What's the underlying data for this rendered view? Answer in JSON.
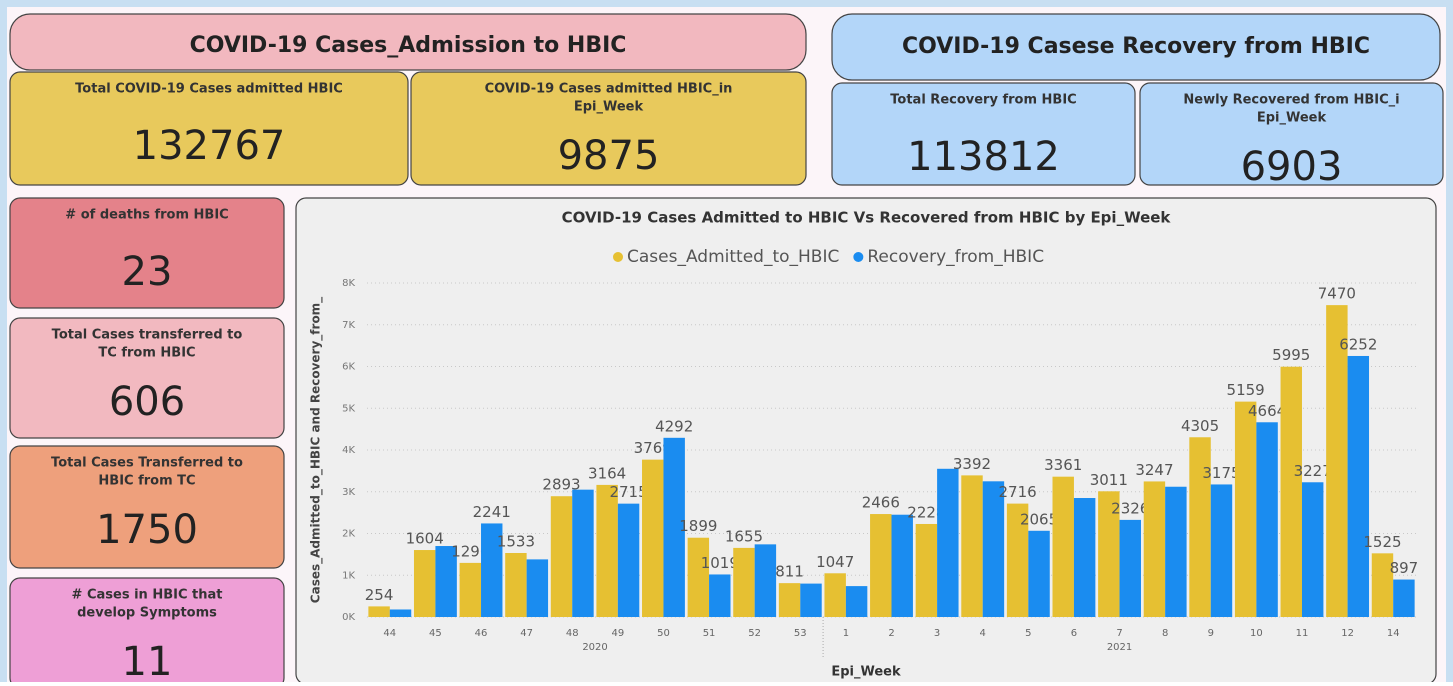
{
  "header_left": "COVID-19 Cases_Admission to HBIC",
  "header_right": "COVID-19 Casese Recovery from HBIC",
  "cards": [
    {
      "title": [
        "Total COVID-19 Cases admitted HBIC"
      ],
      "value": 132767
    },
    {
      "title": [
        "COVID-19 Cases admitted HBIC_in",
        "Epi_Week"
      ],
      "value": 9875
    },
    {
      "title": [
        "Total Recovery from HBIC"
      ],
      "value": 113812
    },
    {
      "title": [
        "Newly Recovered from HBIC_i",
        "Epi_Week"
      ],
      "value": 6903
    },
    {
      "title": [
        "# of deaths from HBIC"
      ],
      "value": 23
    },
    {
      "title": [
        "Total Cases transferred to",
        "TC from HBIC"
      ],
      "value": 606
    },
    {
      "title": [
        "Total Cases Transferred to",
        "HBIC from TC"
      ],
      "value": 1750
    },
    {
      "title": [
        "# Cases in HBIC that",
        "develop Symptoms"
      ],
      "value": 11
    }
  ],
  "chart_data": {
    "type": "bar",
    "title": "COVID-19 Cases Admitted to HBIC Vs Recovered from HBIC by Epi_Week",
    "x_label": "Epi_Week",
    "y_label": "Cases_Admitted_to_HBIC and Recovery_from_",
    "categories": [
      "44",
      "45",
      "46",
      "47",
      "48",
      "49",
      "50",
      "51",
      "52",
      "53",
      "1",
      "2",
      "3",
      "4",
      "5",
      "6",
      "7",
      "8",
      "9",
      "10",
      "11",
      "12",
      "14"
    ],
    "groups": [
      {
        "name": "2020",
        "size": 10
      },
      {
        "name": "2021",
        "size": 13
      }
    ],
    "series": [
      {
        "name": "Cases_Admitted_to_HBIC",
        "color": "#e6c032",
        "values": [
          254,
          1604,
          1296,
          1533,
          2893,
          3164,
          3769,
          1899,
          1655,
          811,
          1047,
          2466,
          2228,
          3392,
          2716,
          3361,
          3011,
          3247,
          4305,
          5159,
          5995,
          7470,
          1525
        ],
        "value_labels": [
          "254",
          "1604",
          "1296",
          "1533",
          "2893",
          "3164",
          "3769",
          "1899",
          "1655",
          "811",
          "1047",
          "2466",
          "2228",
          "3392",
          "2716",
          "3361",
          "3011",
          "3247",
          "4305",
          "5159",
          "5995",
          "7470",
          "1525"
        ]
      },
      {
        "name": "Recovery_from_HBIC",
        "color": "#1a8cf0",
        "values": [
          180,
          1700,
          2241,
          1380,
          3050,
          2715,
          4292,
          1019,
          1740,
          800,
          740,
          2450,
          3550,
          3250,
          2065,
          2850,
          2326,
          3120,
          3175,
          4664,
          3227,
          6252,
          897
        ],
        "value_labels": [
          null,
          null,
          "2241",
          null,
          null,
          "2715",
          "4292",
          "1019",
          null,
          null,
          null,
          null,
          null,
          null,
          "2065",
          null,
          "2326",
          null,
          "3175",
          "4664",
          "3227",
          "6252",
          "897"
        ]
      }
    ],
    "ylim": [
      0,
      8000
    ],
    "yticks": [
      {
        "value": 0,
        "label": "0K"
      },
      {
        "value": 1000,
        "label": "1K"
      },
      {
        "value": 2000,
        "label": "2K"
      },
      {
        "value": 3000,
        "label": "3K"
      },
      {
        "value": 4000,
        "label": "4K"
      },
      {
        "value": 5000,
        "label": "5K"
      },
      {
        "value": 6000,
        "label": "6K"
      },
      {
        "value": 7000,
        "label": "7K"
      },
      {
        "value": 8000,
        "label": "8K"
      }
    ],
    "grid": true
  }
}
